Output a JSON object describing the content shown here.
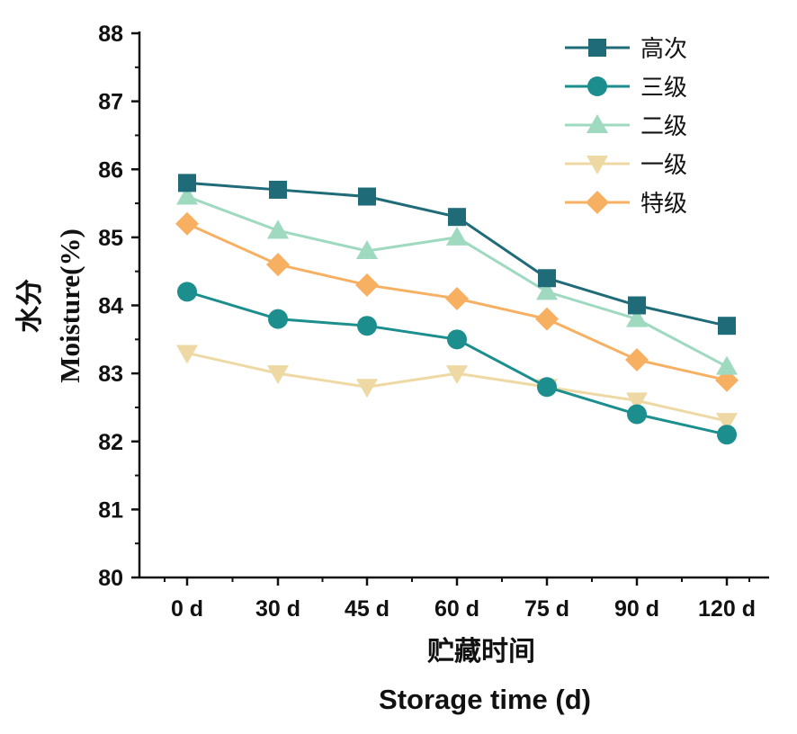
{
  "chart_data": {
    "type": "line",
    "categories": [
      "0 d",
      "30 d",
      "45 d",
      "60 d",
      "75 d",
      "90 d",
      "120 d"
    ],
    "series": [
      {
        "name": "高次",
        "marker": "square",
        "color": "#1F6B78",
        "values": [
          85.8,
          85.7,
          85.6,
          85.3,
          84.4,
          84.0,
          83.7
        ]
      },
      {
        "name": "三级",
        "marker": "circle",
        "color": "#1C8E8E",
        "values": [
          84.2,
          83.8,
          83.7,
          83.5,
          82.8,
          82.4,
          82.1
        ]
      },
      {
        "name": "二级",
        "marker": "triangle-up",
        "color": "#9ED9C0",
        "values": [
          85.6,
          85.1,
          84.8,
          85.0,
          84.2,
          83.8,
          83.1
        ]
      },
      {
        "name": "一级",
        "marker": "triangle-down",
        "color": "#EED9A4",
        "values": [
          83.3,
          83.0,
          82.8,
          83.0,
          82.8,
          82.6,
          82.3
        ]
      },
      {
        "name": "特级",
        "marker": "diamond",
        "color": "#F7B062",
        "values": [
          85.2,
          84.6,
          84.3,
          84.1,
          83.8,
          83.2,
          82.9
        ]
      }
    ],
    "xlabel": [
      "贮藏时间",
      "Storage time (d)"
    ],
    "ylabel": [
      "水分",
      "Moisture(%)"
    ],
    "ylim": [
      80,
      88
    ],
    "yticks": [
      "80",
      "81",
      "82",
      "83",
      "84",
      "85",
      "86",
      "87",
      "88"
    ],
    "legend_position": "top-right",
    "grid": false
  }
}
